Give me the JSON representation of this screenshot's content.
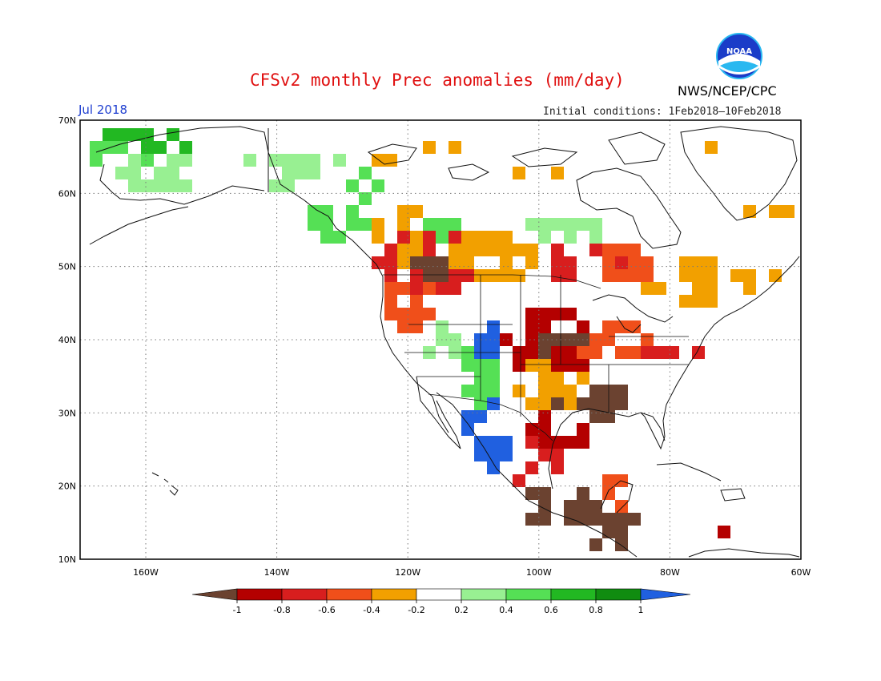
{
  "title": "CFSv2 monthly Prec anomalies (mm/day)",
  "period": "Jul 2018",
  "initial_conditions": "Initial conditions: 1Feb2018–10Feb2018",
  "agency": "NWS/NCEP/CPC",
  "logo_text": "NOAA",
  "lat_labels": [
    "70N",
    "60N",
    "50N",
    "40N",
    "30N",
    "20N",
    "10N"
  ],
  "lon_labels": [
    "160W",
    "140W",
    "120W",
    "100W",
    "80W",
    "60W"
  ],
  "colorbar": {
    "labels": [
      "-1",
      "-0.8",
      "-0.6",
      "-0.4",
      "-0.2",
      "0.2",
      "0.4",
      "0.6",
      "0.8",
      "1"
    ],
    "colors": {
      "lt_neg1": "#6b4230",
      "neg1_neg08": "#b40000",
      "neg08_neg06": "#d81e1e",
      "neg06_neg04": "#f04f1a",
      "neg04_neg02": "#f2a000",
      "neg02_02": "#ffffff",
      "p02_p04": "#98f092",
      "p04_p06": "#55e055",
      "p06_p08": "#22b822",
      "p08_p1": "#108c10",
      "gt_p1": "#2060e0"
    }
  },
  "colors": {
    "title": "#e01010",
    "period": "#1f3fd0",
    "logo_blue": "#1a3cc8",
    "logo_cyan": "#29b8f0"
  }
}
